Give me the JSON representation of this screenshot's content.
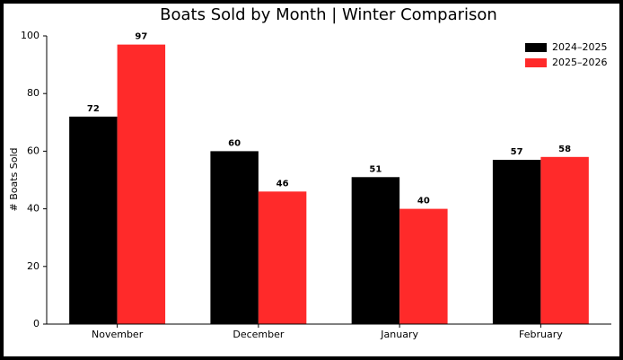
{
  "chart_data": {
    "type": "bar",
    "title": "Boats Sold by Month | Winter Comparison",
    "y_label": "# Boats Sold",
    "categories": [
      "November",
      "December",
      "January",
      "February"
    ],
    "series": [
      {
        "name": "2024–2025",
        "color": "#000000",
        "values": [
          72,
          60,
          51,
          57
        ]
      },
      {
        "name": "2025–2026",
        "color": "#ff2a2a",
        "values": [
          97,
          46,
          40,
          58
        ]
      }
    ],
    "ylim": [
      0,
      100
    ],
    "yticks": [
      0,
      20,
      40,
      60,
      80,
      100
    ],
    "grid": false,
    "legend": "upper right"
  }
}
